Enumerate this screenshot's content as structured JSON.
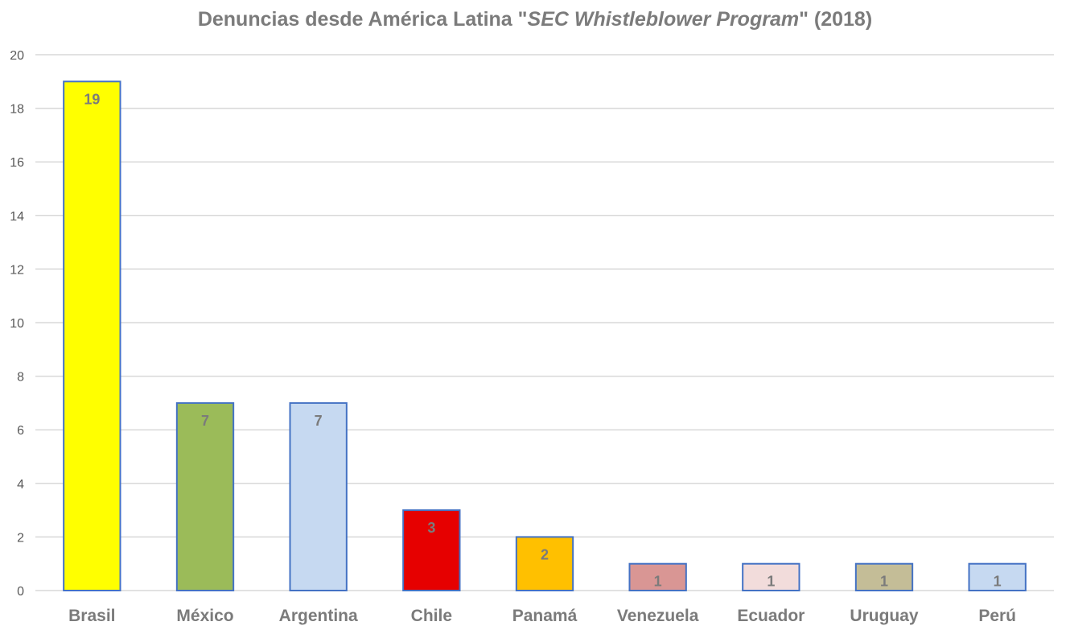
{
  "chart_data": {
    "type": "bar",
    "title_plain": "Denuncias desde América Latina \"",
    "title_italic": "SEC Whistleblower Program",
    "title_tail": "\" (2018)",
    "categories": [
      "Brasil",
      "México",
      "Argentina",
      "Chile",
      "Panamá",
      "Venezuela",
      "Ecuador",
      "Uruguay",
      "Perú"
    ],
    "values": [
      19,
      7,
      7,
      3,
      2,
      1,
      1,
      1,
      1
    ],
    "colors": [
      "#ffff00",
      "#9bbb59",
      "#c6d9f1",
      "#e60000",
      "#ffc000",
      "#d99694",
      "#f2dcdb",
      "#c4bd97",
      "#c6d9f1"
    ],
    "ylim": [
      0,
      20
    ],
    "yticks": [
      0,
      2,
      4,
      6,
      8,
      10,
      12,
      14,
      16,
      18,
      20
    ],
    "grid": true,
    "data_labels": true
  }
}
